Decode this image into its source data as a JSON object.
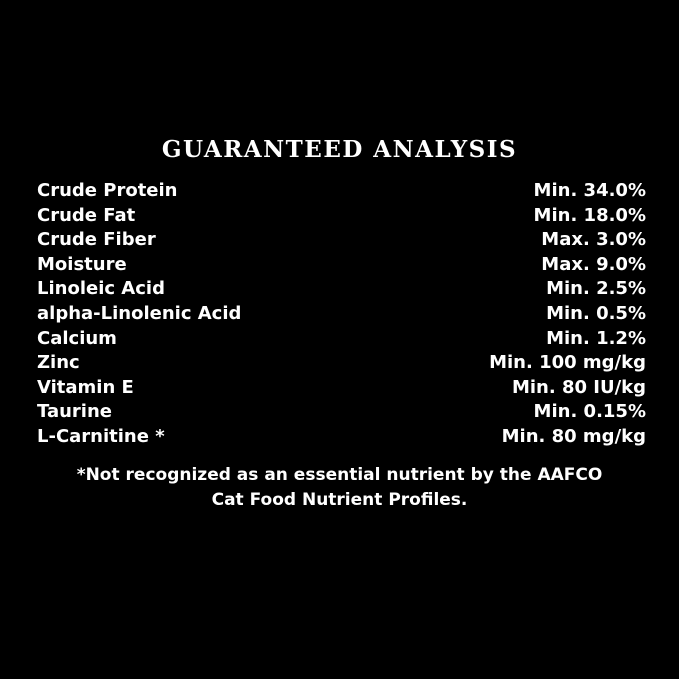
{
  "title": "GUARANTEED ANALYSIS",
  "rows": [
    {
      "name": "Crude Protein",
      "value": "Min. 34.0%"
    },
    {
      "name": "Crude Fat",
      "value": "Min. 18.0%"
    },
    {
      "name": "Crude Fiber",
      "value": "Max. 3.0%"
    },
    {
      "name": "Moisture",
      "value": "Max. 9.0%"
    },
    {
      "name": "Linoleic Acid",
      "value": "Min. 2.5%"
    },
    {
      "name": "alpha-Linolenic Acid",
      "value": "Min. 0.5%"
    },
    {
      "name": "Calcium",
      "value": "Min. 1.2%"
    },
    {
      "name": "Zinc",
      "value": "Min. 100 mg/kg"
    },
    {
      "name": "Vitamin E",
      "value": "Min. 80 IU/kg"
    },
    {
      "name": "Taurine",
      "value": "Min. 0.15%"
    },
    {
      "name": "L-Carnitine *",
      "value": "Min. 80 mg/kg"
    }
  ],
  "note_line1": "*Not recognized as an essential nutrient by the AAFCO",
  "note_line2": "Cat Food Nutrient Profiles."
}
